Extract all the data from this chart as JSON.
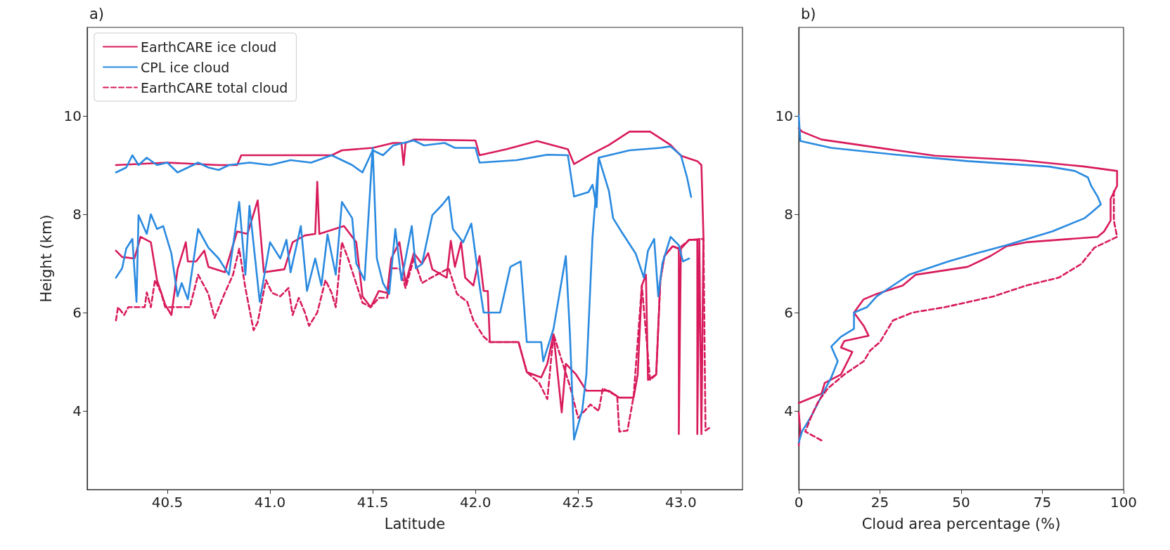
{
  "chart_data": [
    {
      "type": "line",
      "title": "a)",
      "xlabel": "Latitude",
      "ylabel": "Height (km)",
      "xlim": [
        40.11,
        43.3
      ],
      "xticks": [
        40.5,
        {
          "value": 41,
          "label": "41.0"
        },
        41.5,
        {
          "value": 42,
          "label": "42.0"
        },
        42.5,
        {
          "value": 43,
          "label": "43.0"
        }
      ],
      "ylim": [
        2.4,
        11.8
      ],
      "yticks": [
        4,
        6,
        8,
        10
      ],
      "grid": false,
      "legend": "top left",
      "marker": "none",
      "series": [
        {
          "name": "EarthCARE ice cloud",
          "color": "#d81b5c",
          "line_style": "solid",
          "x": [
            40.25,
            40.5,
            40.75,
            40.84,
            40.86,
            41.3,
            41.35,
            41.5,
            41.6,
            41.64,
            41.65,
            41.66,
            41.7,
            42.0,
            42.02,
            42.15,
            42.3,
            42.45,
            42.48,
            42.55,
            42.65,
            42.75,
            42.85,
            42.95,
            43.0,
            43.08,
            43.1,
            43.11,
            43.1,
            43.09,
            43.08,
            43.08,
            43.04,
            43.0,
            42.99,
            42.99,
            42.96,
            42.92,
            42.9,
            42.88,
            42.84,
            42.83,
            42.81,
            42.79,
            42.77,
            42.7,
            42.65,
            42.54,
            42.49,
            42.44,
            42.42,
            42.38,
            42.35,
            42.32,
            42.25,
            42.21,
            42.07,
            42.06,
            42.04,
            42.02,
            41.99,
            41.95,
            41.93,
            41.9,
            41.88,
            41.86,
            41.79,
            41.77,
            41.74,
            41.7,
            41.66,
            41.63,
            41.59,
            41.57,
            41.53,
            41.49,
            41.45,
            41.42,
            41.36,
            41.24,
            41.23,
            41.22,
            41.17,
            41.11,
            41.07,
            40.97,
            40.94,
            40.89,
            40.84,
            40.78,
            40.7,
            40.68,
            40.64,
            40.6,
            40.59,
            40.55,
            40.52,
            40.49,
            40.45,
            40.42,
            40.37,
            40.34,
            40.28,
            40.25
          ],
          "values": [
            9.0,
            9.05,
            9.0,
            9.0,
            9.2,
            9.2,
            9.3,
            9.35,
            9.45,
            9.45,
            9.0,
            9.45,
            9.52,
            9.5,
            9.2,
            9.32,
            9.49,
            9.32,
            9.02,
            9.19,
            9.41,
            9.68,
            9.68,
            9.41,
            9.19,
            9.08,
            9.0,
            7.54,
            3.53,
            7.5,
            3.53,
            7.48,
            7.48,
            7.3,
            3.53,
            7.3,
            7.35,
            7.15,
            6.66,
            4.74,
            4.63,
            6.77,
            6.55,
            4.74,
            4.27,
            4.27,
            4.41,
            4.41,
            4.74,
            4.96,
            3.97,
            5.56,
            4.96,
            4.68,
            4.79,
            5.4,
            5.4,
            6.44,
            6.44,
            7.15,
            6.55,
            6.71,
            7.43,
            6.93,
            7.46,
            6.71,
            6.88,
            7.21,
            6.99,
            7.21,
            6.6,
            7.43,
            7.1,
            6.4,
            6.44,
            6.11,
            6.33,
            7.43,
            7.76,
            7.6,
            8.66,
            7.6,
            7.57,
            7.43,
            6.88,
            6.82,
            8.28,
            7.6,
            7.65,
            6.82,
            6.93,
            7.26,
            7.04,
            7.04,
            7.43,
            6.88,
            5.95,
            6.16,
            6.66,
            7.43,
            7.54,
            7.1,
            7.13,
            7.26
          ]
        },
        {
          "name": "CPL ice cloud",
          "color": "#2a8ae0",
          "line_style": "solid",
          "x": [
            40.25,
            40.3,
            40.33,
            40.36,
            40.4,
            40.45,
            40.5,
            40.55,
            40.6,
            40.65,
            40.7,
            40.75,
            40.8,
            40.9,
            41.0,
            41.1,
            41.2,
            41.3,
            41.4,
            41.45,
            41.5,
            41.55,
            41.6,
            41.7,
            41.75,
            41.85,
            41.9,
            42.0,
            42.02,
            42.2,
            42.35,
            42.45,
            42.48,
            42.55,
            42.57,
            42.59,
            42.6,
            42.75,
            42.9,
            42.95,
            43.0,
            43.03,
            43.05
          ],
          "values": [
            8.85,
            8.95,
            9.2,
            9.0,
            9.15,
            9.0,
            9.05,
            8.85,
            8.95,
            9.05,
            8.95,
            8.9,
            9.0,
            9.05,
            9.0,
            9.1,
            9.05,
            9.2,
            9.0,
            8.85,
            9.3,
            9.2,
            9.4,
            9.5,
            9.4,
            9.45,
            9.35,
            9.35,
            9.05,
            9.1,
            9.21,
            9.2,
            8.36,
            8.45,
            8.6,
            8.14,
            9.15,
            9.3,
            9.35,
            9.38,
            9.2,
            8.75,
            8.35
          ]
        },
        {
          "name": "EarthCARE total cloud",
          "color": "#d81b5c",
          "line_style": "dashed",
          "x": [
            40.25,
            40.26,
            40.29,
            40.31,
            40.39,
            40.4,
            40.42,
            40.44,
            40.47,
            40.49,
            40.52,
            40.61,
            40.65,
            40.7,
            40.73,
            40.78,
            40.82,
            40.85,
            40.88,
            40.92,
            40.94,
            40.98,
            41.01,
            41.05,
            41.09,
            41.11,
            41.14,
            41.17,
            41.19,
            41.23,
            41.27,
            41.3,
            41.32,
            41.35,
            41.38,
            41.45,
            41.49,
            41.53,
            41.57,
            41.59,
            41.63,
            41.66,
            41.7,
            41.74,
            41.78,
            41.87,
            41.91,
            41.96,
            41.99,
            42.04,
            42.07,
            42.21,
            42.25,
            42.31,
            42.35,
            42.38,
            42.46,
            42.5,
            42.56,
            42.6,
            42.62,
            42.69,
            42.7,
            42.74,
            42.77,
            42.81,
            42.85,
            42.88,
            42.9,
            42.92,
            42.96,
            42.99,
            43.04,
            43.11,
            43.12,
            43.14
          ],
          "values": [
            5.84,
            6.11,
            5.95,
            6.11,
            6.11,
            6.41,
            6.11,
            6.66,
            6.4,
            6.11,
            6.11,
            6.11,
            6.77,
            6.38,
            5.89,
            6.4,
            6.77,
            7.3,
            6.5,
            5.64,
            5.8,
            6.66,
            6.4,
            6.33,
            6.5,
            5.95,
            6.3,
            6.0,
            5.73,
            6.0,
            6.66,
            6.4,
            6.11,
            7.43,
            7.1,
            6.2,
            6.11,
            6.3,
            6.3,
            6.9,
            6.9,
            6.5,
            7.1,
            6.6,
            6.7,
            6.9,
            6.38,
            6.22,
            5.84,
            5.51,
            5.4,
            5.4,
            4.79,
            4.57,
            4.24,
            5.56,
            4.5,
            3.86,
            4.13,
            4.0,
            4.46,
            4.3,
            3.58,
            3.6,
            4.3,
            6.55,
            4.63,
            4.74,
            6.66,
            7.15,
            7.35,
            7.3,
            7.48,
            7.5,
            3.6,
            3.66
          ]
        },
        {
          "color": "#2a8ae0",
          "line_style": "solid",
          "x": [
            40.25,
            40.28,
            40.3,
            40.33,
            40.35,
            40.36,
            40.4,
            40.42,
            40.45,
            40.48,
            40.52,
            40.55,
            40.57,
            40.6,
            40.65,
            40.7,
            40.75,
            40.8,
            40.85,
            40.88,
            40.9,
            40.95,
            41.0,
            41.05,
            41.08,
            41.1,
            41.15,
            41.18,
            41.22,
            41.25,
            41.28,
            41.32,
            41.35,
            41.4,
            41.42,
            41.46,
            41.5,
            41.52,
            41.55,
            41.58,
            41.61,
            41.64,
            41.69,
            41.71,
            41.74,
            41.79,
            41.84,
            41.87,
            41.89,
            41.94,
            41.98,
            42.02,
            42.04,
            42.12,
            42.17,
            42.22,
            42.25,
            42.32,
            42.33,
            42.38,
            42.44,
            42.46,
            42.48,
            42.52,
            42.54,
            42.57,
            42.6,
            42.65,
            42.67,
            42.71,
            42.78,
            42.82,
            42.84,
            42.87,
            42.89,
            42.91,
            42.95,
            42.99,
            43.01,
            43.04
          ],
          "values": [
            6.71,
            6.9,
            7.3,
            7.5,
            6.22,
            7.98,
            7.6,
            8.0,
            7.7,
            7.76,
            7.2,
            6.33,
            6.6,
            6.27,
            7.7,
            7.32,
            7.1,
            6.77,
            8.25,
            6.77,
            8.17,
            6.22,
            7.43,
            7.1,
            7.48,
            6.82,
            7.76,
            6.44,
            7.1,
            6.55,
            7.59,
            6.77,
            8.25,
            7.92,
            7.0,
            6.66,
            9.35,
            7.1,
            6.6,
            6.38,
            7.7,
            6.66,
            7.76,
            6.9,
            6.99,
            7.98,
            8.2,
            8.36,
            7.7,
            7.43,
            7.81,
            6.55,
            6.0,
            6.0,
            6.93,
            7.04,
            5.4,
            5.4,
            5.01,
            5.67,
            7.15,
            5.56,
            3.42,
            4.02,
            4.74,
            7.54,
            9.15,
            8.47,
            7.92,
            7.65,
            7.2,
            6.71,
            7.26,
            7.5,
            6.33,
            7.0,
            7.54,
            7.37,
            7.04,
            7.1
          ]
        }
      ]
    },
    {
      "type": "line",
      "title": "b)",
      "xlabel": "Cloud area percentage (%)",
      "xlim": [
        0,
        100
      ],
      "xticks": [
        0,
        25,
        50,
        75,
        100
      ],
      "ylim": [
        2.4,
        11.8
      ],
      "yticks": [
        4,
        6,
        8,
        10
      ],
      "grid": false,
      "legend": false,
      "marker": "none",
      "series": [
        {
          "color": "#d81b5c",
          "line_style": "solid",
          "x": [
            0,
            1,
            7,
            28,
            42,
            68,
            88,
            98,
            98,
            96,
            96,
            94,
            92,
            70,
            64,
            59,
            52,
            36,
            32,
            24,
            20,
            17,
            20,
            21.5,
            14,
            13,
            16.5,
            13,
            8,
            7,
            0
          ],
          "values": [
            9.75,
            9.68,
            9.52,
            9.32,
            9.19,
            9.1,
            8.97,
            8.88,
            8.58,
            8.31,
            7.87,
            7.65,
            7.54,
            7.43,
            7.35,
            7.15,
            6.93,
            6.77,
            6.55,
            6.38,
            6.27,
            6.0,
            5.73,
            5.53,
            5.42,
            5.29,
            5.2,
            4.74,
            4.57,
            4.35,
            4.16
          ]
        },
        {
          "color": "#d81b5c",
          "line_style": "solid",
          "x": [
            0,
            0.5,
            0
          ],
          "values": [
            3.97,
            3.6,
            3.3
          ]
        },
        {
          "color": "#2a8ae0",
          "line_style": "solid",
          "x": [
            0,
            0.5,
            10,
            30,
            52,
            77,
            85,
            89,
            90,
            92,
            93,
            90,
            88,
            78,
            64,
            55,
            46,
            34,
            29,
            24,
            21,
            17,
            17,
            13,
            10,
            12,
            10,
            7,
            4,
            1,
            0
          ],
          "values": [
            10.0,
            9.49,
            9.35,
            9.21,
            9.08,
            8.97,
            8.88,
            8.75,
            8.58,
            8.36,
            8.2,
            8.03,
            7.92,
            7.65,
            7.37,
            7.21,
            7.04,
            6.77,
            6.55,
            6.33,
            6.11,
            6.0,
            5.67,
            5.51,
            5.31,
            5.01,
            4.68,
            4.3,
            3.91,
            3.58,
            3.36
          ]
        },
        {
          "color": "#d81b5c",
          "line_style": "dashed",
          "x": [
            97,
            97,
            98,
            91,
            87,
            80,
            70,
            60,
            45,
            35,
            29,
            25,
            22,
            20,
            14,
            9,
            6,
            4,
            2,
            7
          ],
          "values": [
            8.47,
            7.87,
            7.54,
            7.32,
            6.99,
            6.71,
            6.55,
            6.33,
            6.11,
            6.0,
            5.84,
            5.4,
            5.23,
            5.01,
            4.74,
            4.46,
            4.19,
            3.91,
            3.58,
            3.4
          ]
        }
      ]
    }
  ]
}
